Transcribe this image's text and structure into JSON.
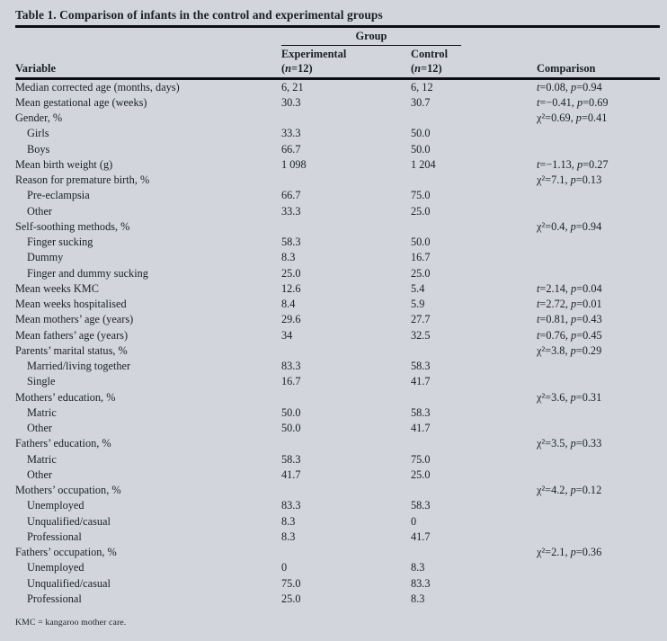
{
  "figure": {
    "title": "Table 1. Comparison of infants in the control and experimental groups",
    "group_header": "Group",
    "columns": {
      "variable": "Variable",
      "experimental_label": "Experimental",
      "experimental_n": "(n=12)",
      "control_label": "Control",
      "control_n": "(n=12)",
      "comparison": "Comparison"
    },
    "rows": [
      {
        "variable": "Median corrected age (months, days)",
        "indent": false,
        "experimental": "6, 21",
        "control": "6, 12",
        "comparison": "t=0.08, p=0.94"
      },
      {
        "variable": "Mean gestational age (weeks)",
        "indent": false,
        "experimental": "30.3",
        "control": "30.7",
        "comparison": "t=−0.41, p=0.69"
      },
      {
        "variable": "Gender, %",
        "indent": false,
        "experimental": "",
        "control": "",
        "comparison": "χ²=0.69, p=0.41"
      },
      {
        "variable": "Girls",
        "indent": true,
        "experimental": "33.3",
        "control": "50.0",
        "comparison": ""
      },
      {
        "variable": "Boys",
        "indent": true,
        "experimental": "66.7",
        "control": "50.0",
        "comparison": ""
      },
      {
        "variable": "Mean birth weight (g)",
        "indent": false,
        "experimental": "1 098",
        "control": "1 204",
        "comparison": "t=−1.13, p=0.27"
      },
      {
        "variable": "Reason for premature birth, %",
        "indent": false,
        "experimental": "",
        "control": "",
        "comparison": "χ²=7.1, p=0.13"
      },
      {
        "variable": "Pre-eclampsia",
        "indent": true,
        "experimental": "66.7",
        "control": "75.0",
        "comparison": ""
      },
      {
        "variable": "Other",
        "indent": true,
        "experimental": "33.3",
        "control": "25.0",
        "comparison": ""
      },
      {
        "variable": "Self-soothing methods, %",
        "indent": false,
        "experimental": "",
        "control": "",
        "comparison": "χ²=0.4, p=0.94"
      },
      {
        "variable": "Finger sucking",
        "indent": true,
        "experimental": "58.3",
        "control": "50.0",
        "comparison": ""
      },
      {
        "variable": "Dummy",
        "indent": true,
        "experimental": "8.3",
        "control": "16.7",
        "comparison": ""
      },
      {
        "variable": "Finger and dummy sucking",
        "indent": true,
        "experimental": "25.0",
        "control": "25.0",
        "comparison": ""
      },
      {
        "variable": "Mean weeks KMC",
        "indent": false,
        "experimental": "12.6",
        "control": "5.4",
        "comparison": "t=2.14, p=0.04"
      },
      {
        "variable": "Mean weeks hospitalised",
        "indent": false,
        "experimental": "8.4",
        "control": "5.9",
        "comparison": "t=2.72, p=0.01"
      },
      {
        "variable": "Mean mothers’ age (years)",
        "indent": false,
        "experimental": "29.6",
        "control": "27.7",
        "comparison": "t=0.81, p=0.43"
      },
      {
        "variable": "Mean fathers’ age (years)",
        "indent": false,
        "experimental": "34",
        "control": "32.5",
        "comparison": "t=0.76, p=0.45"
      },
      {
        "variable": "Parents’ marital status, %",
        "indent": false,
        "experimental": "",
        "control": "",
        "comparison": "χ²=3.8, p=0.29"
      },
      {
        "variable": "Married/living together",
        "indent": true,
        "experimental": "83.3",
        "control": "58.3",
        "comparison": ""
      },
      {
        "variable": "Single",
        "indent": true,
        "experimental": "16.7",
        "control": "41.7",
        "comparison": ""
      },
      {
        "variable": "Mothers’ education, %",
        "indent": false,
        "experimental": "",
        "control": "",
        "comparison": "χ²=3.6, p=0.31"
      },
      {
        "variable": "Matric",
        "indent": true,
        "experimental": "50.0",
        "control": "58.3",
        "comparison": ""
      },
      {
        "variable": "Other",
        "indent": true,
        "experimental": "50.0",
        "control": "41.7",
        "comparison": ""
      },
      {
        "variable": "Fathers’ education, %",
        "indent": false,
        "experimental": "",
        "control": "",
        "comparison": "χ²=3.5, p=0.33"
      },
      {
        "variable": "Matric",
        "indent": true,
        "experimental": "58.3",
        "control": "75.0",
        "comparison": ""
      },
      {
        "variable": "Other",
        "indent": true,
        "experimental": "41.7",
        "control": "25.0",
        "comparison": ""
      },
      {
        "variable": "Mothers’ occupation, %",
        "indent": false,
        "experimental": "",
        "control": "",
        "comparison": "χ²=4.2, p=0.12"
      },
      {
        "variable": "Unemployed",
        "indent": true,
        "experimental": "83.3",
        "control": "58.3",
        "comparison": ""
      },
      {
        "variable": "Unqualified/casual",
        "indent": true,
        "experimental": "8.3",
        "control": "0",
        "comparison": ""
      },
      {
        "variable": "Professional",
        "indent": true,
        "experimental": "8.3",
        "control": "41.7",
        "comparison": ""
      },
      {
        "variable": "Fathers’ occupation, %",
        "indent": false,
        "experimental": "",
        "control": "",
        "comparison": "χ²=2.1, p=0.36"
      },
      {
        "variable": "Unemployed",
        "indent": true,
        "experimental": "0",
        "control": "8.3",
        "comparison": ""
      },
      {
        "variable": "Unqualified/casual",
        "indent": true,
        "experimental": "75.0",
        "control": "83.3",
        "comparison": ""
      },
      {
        "variable": "Professional",
        "indent": true,
        "experimental": "25.0",
        "control": "8.3",
        "comparison": ""
      }
    ],
    "footnote": "KMC = kangaroo mother care."
  }
}
